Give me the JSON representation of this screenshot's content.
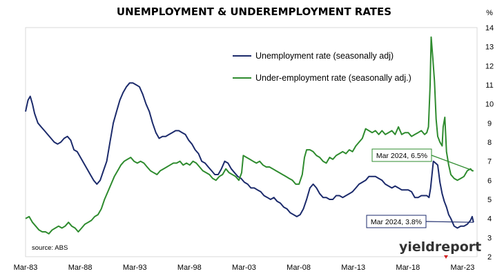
{
  "chart_data": {
    "type": "line",
    "title": "UNEMPLOYMENT & UNDEREMPLOYMENT RATES",
    "y_unit": "%",
    "ylim": [
      2,
      14
    ],
    "y_ticks": [
      2,
      3,
      4,
      5,
      6,
      7,
      8,
      9,
      10,
      11,
      12,
      13,
      14
    ],
    "xlim": [
      1983.17,
      2024.5
    ],
    "x_ticks": [
      {
        "label": "Mar-83",
        "x": 1983.17
      },
      {
        "label": "Mar-88",
        "x": 1988.17
      },
      {
        "label": "Mar-93",
        "x": 1993.17
      },
      {
        "label": "Mar-98",
        "x": 1998.17
      },
      {
        "label": "Mar-03",
        "x": 2003.17
      },
      {
        "label": "Mar-08",
        "x": 2008.17
      },
      {
        "label": "Mar-13",
        "x": 2013.17
      },
      {
        "label": "Mar-18",
        "x": 2018.17
      },
      {
        "label": "Mar-23",
        "x": 2023.17
      }
    ],
    "grid": false,
    "legend_position": "top-center",
    "source": "source: ABS",
    "logo": "yieldreport",
    "colors": {
      "unemployment": "#1b2a6b",
      "underemployment": "#2e8b2e"
    },
    "series": [
      {
        "name": "Unemployment rate (seasonally adj)",
        "key": "unemployment",
        "points": [
          [
            1983.17,
            9.6
          ],
          [
            1983.4,
            10.2
          ],
          [
            1983.6,
            10.4
          ],
          [
            1983.8,
            10.0
          ],
          [
            1984.0,
            9.5
          ],
          [
            1984.3,
            9.0
          ],
          [
            1984.6,
            8.8
          ],
          [
            1984.9,
            8.6
          ],
          [
            1985.2,
            8.4
          ],
          [
            1985.5,
            8.2
          ],
          [
            1985.8,
            8.0
          ],
          [
            1986.1,
            7.9
          ],
          [
            1986.4,
            8.0
          ],
          [
            1986.7,
            8.2
          ],
          [
            1987.0,
            8.3
          ],
          [
            1987.3,
            8.1
          ],
          [
            1987.6,
            7.6
          ],
          [
            1987.9,
            7.5
          ],
          [
            1988.2,
            7.2
          ],
          [
            1988.5,
            6.9
          ],
          [
            1988.8,
            6.6
          ],
          [
            1989.1,
            6.3
          ],
          [
            1989.4,
            6.0
          ],
          [
            1989.7,
            5.8
          ],
          [
            1990.0,
            6.0
          ],
          [
            1990.3,
            6.5
          ],
          [
            1990.6,
            7.0
          ],
          [
            1990.9,
            8.0
          ],
          [
            1991.2,
            9.0
          ],
          [
            1991.5,
            9.6
          ],
          [
            1991.8,
            10.2
          ],
          [
            1992.1,
            10.6
          ],
          [
            1992.4,
            10.9
          ],
          [
            1992.7,
            11.1
          ],
          [
            1993.0,
            11.1
          ],
          [
            1993.3,
            11.0
          ],
          [
            1993.6,
            10.9
          ],
          [
            1993.9,
            10.5
          ],
          [
            1994.2,
            10.0
          ],
          [
            1994.5,
            9.6
          ],
          [
            1994.8,
            9.0
          ],
          [
            1995.1,
            8.5
          ],
          [
            1995.4,
            8.2
          ],
          [
            1995.7,
            8.3
          ],
          [
            1996.0,
            8.3
          ],
          [
            1996.3,
            8.4
          ],
          [
            1996.6,
            8.5
          ],
          [
            1996.9,
            8.6
          ],
          [
            1997.2,
            8.6
          ],
          [
            1997.5,
            8.5
          ],
          [
            1997.8,
            8.4
          ],
          [
            1998.1,
            8.1
          ],
          [
            1998.4,
            7.9
          ],
          [
            1998.7,
            7.6
          ],
          [
            1999.0,
            7.4
          ],
          [
            1999.3,
            7.0
          ],
          [
            1999.6,
            6.9
          ],
          [
            1999.9,
            6.7
          ],
          [
            2000.2,
            6.5
          ],
          [
            2000.5,
            6.3
          ],
          [
            2000.8,
            6.3
          ],
          [
            2001.1,
            6.6
          ],
          [
            2001.4,
            7.0
          ],
          [
            2001.7,
            6.9
          ],
          [
            2002.0,
            6.6
          ],
          [
            2002.3,
            6.4
          ],
          [
            2002.6,
            6.2
          ],
          [
            2002.9,
            6.1
          ],
          [
            2003.2,
            5.9
          ],
          [
            2003.5,
            5.8
          ],
          [
            2003.8,
            5.6
          ],
          [
            2004.1,
            5.6
          ],
          [
            2004.4,
            5.5
          ],
          [
            2004.7,
            5.4
          ],
          [
            2005.0,
            5.2
          ],
          [
            2005.3,
            5.1
          ],
          [
            2005.6,
            5.0
          ],
          [
            2005.9,
            5.1
          ],
          [
            2006.2,
            4.9
          ],
          [
            2006.5,
            4.8
          ],
          [
            2006.8,
            4.6
          ],
          [
            2007.1,
            4.5
          ],
          [
            2007.4,
            4.3
          ],
          [
            2007.7,
            4.2
          ],
          [
            2008.0,
            4.1
          ],
          [
            2008.3,
            4.2
          ],
          [
            2008.6,
            4.5
          ],
          [
            2008.9,
            5.0
          ],
          [
            2009.2,
            5.6
          ],
          [
            2009.5,
            5.8
          ],
          [
            2009.8,
            5.6
          ],
          [
            2010.1,
            5.3
          ],
          [
            2010.4,
            5.1
          ],
          [
            2010.7,
            5.1
          ],
          [
            2011.0,
            5.0
          ],
          [
            2011.3,
            5.0
          ],
          [
            2011.6,
            5.2
          ],
          [
            2011.9,
            5.2
          ],
          [
            2012.2,
            5.1
          ],
          [
            2012.5,
            5.2
          ],
          [
            2012.8,
            5.3
          ],
          [
            2013.1,
            5.4
          ],
          [
            2013.4,
            5.6
          ],
          [
            2013.7,
            5.8
          ],
          [
            2014.0,
            5.9
          ],
          [
            2014.3,
            6.0
          ],
          [
            2014.6,
            6.2
          ],
          [
            2014.9,
            6.2
          ],
          [
            2015.2,
            6.2
          ],
          [
            2015.5,
            6.1
          ],
          [
            2015.8,
            6.0
          ],
          [
            2016.1,
            5.8
          ],
          [
            2016.4,
            5.7
          ],
          [
            2016.7,
            5.6
          ],
          [
            2017.0,
            5.7
          ],
          [
            2017.3,
            5.6
          ],
          [
            2017.6,
            5.5
          ],
          [
            2017.9,
            5.5
          ],
          [
            2018.2,
            5.5
          ],
          [
            2018.5,
            5.4
          ],
          [
            2018.8,
            5.1
          ],
          [
            2019.1,
            5.1
          ],
          [
            2019.4,
            5.2
          ],
          [
            2019.7,
            5.2
          ],
          [
            2019.9,
            5.2
          ],
          [
            2020.1,
            5.1
          ],
          [
            2020.25,
            5.6
          ],
          [
            2020.5,
            7.0
          ],
          [
            2020.7,
            6.9
          ],
          [
            2020.9,
            6.8
          ],
          [
            2021.1,
            5.9
          ],
          [
            2021.3,
            5.3
          ],
          [
            2021.5,
            4.9
          ],
          [
            2021.7,
            4.6
          ],
          [
            2021.9,
            4.2
          ],
          [
            2022.1,
            4.0
          ],
          [
            2022.4,
            3.6
          ],
          [
            2022.7,
            3.5
          ],
          [
            2023.0,
            3.6
          ],
          [
            2023.3,
            3.6
          ],
          [
            2023.6,
            3.7
          ],
          [
            2023.9,
            3.9
          ],
          [
            2024.05,
            4.1
          ],
          [
            2024.17,
            3.8
          ]
        ]
      },
      {
        "name": "Under-employment rate (seasonally adj.)",
        "key": "underemployment",
        "points": [
          [
            1983.17,
            4.0
          ],
          [
            1983.5,
            4.1
          ],
          [
            1983.8,
            3.8
          ],
          [
            1984.1,
            3.6
          ],
          [
            1984.4,
            3.4
          ],
          [
            1984.7,
            3.3
          ],
          [
            1985.0,
            3.3
          ],
          [
            1985.3,
            3.2
          ],
          [
            1985.6,
            3.4
          ],
          [
            1985.9,
            3.5
          ],
          [
            1986.2,
            3.6
          ],
          [
            1986.5,
            3.5
          ],
          [
            1986.8,
            3.6
          ],
          [
            1987.1,
            3.8
          ],
          [
            1987.4,
            3.6
          ],
          [
            1987.7,
            3.5
          ],
          [
            1988.0,
            3.3
          ],
          [
            1988.3,
            3.5
          ],
          [
            1988.6,
            3.7
          ],
          [
            1988.9,
            3.8
          ],
          [
            1989.2,
            3.9
          ],
          [
            1989.5,
            4.1
          ],
          [
            1989.8,
            4.2
          ],
          [
            1990.1,
            4.5
          ],
          [
            1990.4,
            5.0
          ],
          [
            1990.7,
            5.4
          ],
          [
            1991.0,
            5.8
          ],
          [
            1991.3,
            6.2
          ],
          [
            1991.6,
            6.5
          ],
          [
            1991.9,
            6.8
          ],
          [
            1992.2,
            7.0
          ],
          [
            1992.5,
            7.1
          ],
          [
            1992.8,
            7.2
          ],
          [
            1993.1,
            7.0
          ],
          [
            1993.4,
            6.9
          ],
          [
            1993.7,
            7.0
          ],
          [
            1994.0,
            6.9
          ],
          [
            1994.3,
            6.7
          ],
          [
            1994.6,
            6.5
          ],
          [
            1994.9,
            6.4
          ],
          [
            1995.2,
            6.3
          ],
          [
            1995.5,
            6.5
          ],
          [
            1995.8,
            6.6
          ],
          [
            1996.1,
            6.7
          ],
          [
            1996.4,
            6.8
          ],
          [
            1996.7,
            6.9
          ],
          [
            1997.0,
            6.9
          ],
          [
            1997.3,
            7.0
          ],
          [
            1997.6,
            6.8
          ],
          [
            1997.9,
            6.9
          ],
          [
            1998.2,
            6.8
          ],
          [
            1998.5,
            7.0
          ],
          [
            1998.8,
            6.9
          ],
          [
            1999.1,
            6.7
          ],
          [
            1999.4,
            6.5
          ],
          [
            1999.7,
            6.4
          ],
          [
            2000.0,
            6.3
          ],
          [
            2000.3,
            6.1
          ],
          [
            2000.6,
            6.0
          ],
          [
            2000.9,
            6.2
          ],
          [
            2001.2,
            6.3
          ],
          [
            2001.5,
            6.6
          ],
          [
            2001.8,
            6.4
          ],
          [
            2002.1,
            6.3
          ],
          [
            2002.4,
            6.2
          ],
          [
            2002.7,
            6.0
          ],
          [
            2002.95,
            6.4
          ],
          [
            2003.1,
            7.3
          ],
          [
            2003.4,
            7.2
          ],
          [
            2003.7,
            7.1
          ],
          [
            2004.0,
            7.0
          ],
          [
            2004.3,
            6.9
          ],
          [
            2004.6,
            7.0
          ],
          [
            2004.9,
            6.8
          ],
          [
            2005.2,
            6.7
          ],
          [
            2005.5,
            6.7
          ],
          [
            2005.8,
            6.6
          ],
          [
            2006.1,
            6.5
          ],
          [
            2006.4,
            6.4
          ],
          [
            2006.7,
            6.3
          ],
          [
            2007.0,
            6.2
          ],
          [
            2007.3,
            6.1
          ],
          [
            2007.6,
            6.0
          ],
          [
            2007.9,
            5.8
          ],
          [
            2008.2,
            5.8
          ],
          [
            2008.5,
            6.3
          ],
          [
            2008.7,
            7.2
          ],
          [
            2008.9,
            7.6
          ],
          [
            2009.2,
            7.6
          ],
          [
            2009.5,
            7.5
          ],
          [
            2009.8,
            7.3
          ],
          [
            2010.1,
            7.2
          ],
          [
            2010.4,
            7.0
          ],
          [
            2010.7,
            6.9
          ],
          [
            2011.0,
            7.2
          ],
          [
            2011.3,
            7.1
          ],
          [
            2011.6,
            7.3
          ],
          [
            2011.9,
            7.4
          ],
          [
            2012.2,
            7.5
          ],
          [
            2012.5,
            7.4
          ],
          [
            2012.8,
            7.6
          ],
          [
            2013.1,
            7.5
          ],
          [
            2013.4,
            7.8
          ],
          [
            2013.7,
            8.0
          ],
          [
            2014.0,
            8.2
          ],
          [
            2014.3,
            8.7
          ],
          [
            2014.6,
            8.6
          ],
          [
            2014.9,
            8.5
          ],
          [
            2015.2,
            8.6
          ],
          [
            2015.5,
            8.4
          ],
          [
            2015.8,
            8.6
          ],
          [
            2016.1,
            8.4
          ],
          [
            2016.4,
            8.5
          ],
          [
            2016.7,
            8.6
          ],
          [
            2017.0,
            8.4
          ],
          [
            2017.3,
            8.8
          ],
          [
            2017.6,
            8.4
          ],
          [
            2017.9,
            8.5
          ],
          [
            2018.2,
            8.5
          ],
          [
            2018.5,
            8.3
          ],
          [
            2018.8,
            8.4
          ],
          [
            2019.1,
            8.5
          ],
          [
            2019.4,
            8.6
          ],
          [
            2019.7,
            8.4
          ],
          [
            2019.9,
            8.5
          ],
          [
            2020.05,
            8.8
          ],
          [
            2020.2,
            11.0
          ],
          [
            2020.3,
            13.5
          ],
          [
            2020.45,
            12.4
          ],
          [
            2020.6,
            11.2
          ],
          [
            2020.75,
            9.2
          ],
          [
            2020.9,
            8.3
          ],
          [
            2021.1,
            8.0
          ],
          [
            2021.3,
            7.8
          ],
          [
            2021.4,
            8.8
          ],
          [
            2021.55,
            9.3
          ],
          [
            2021.7,
            7.5
          ],
          [
            2021.9,
            6.8
          ],
          [
            2022.1,
            6.3
          ],
          [
            2022.4,
            6.1
          ],
          [
            2022.7,
            6.0
          ],
          [
            2023.0,
            6.1
          ],
          [
            2023.3,
            6.2
          ],
          [
            2023.6,
            6.5
          ],
          [
            2023.9,
            6.6
          ],
          [
            2024.05,
            6.5
          ],
          [
            2024.17,
            6.5
          ]
        ]
      }
    ],
    "annotations": [
      {
        "text": "Mar 2024, 6.5%",
        "series": "underemployment",
        "x": 2024.17,
        "y": 6.5
      },
      {
        "text": "Mar 2024, 3.8%",
        "series": "unemployment",
        "x": 2024.17,
        "y": 3.8
      }
    ]
  }
}
